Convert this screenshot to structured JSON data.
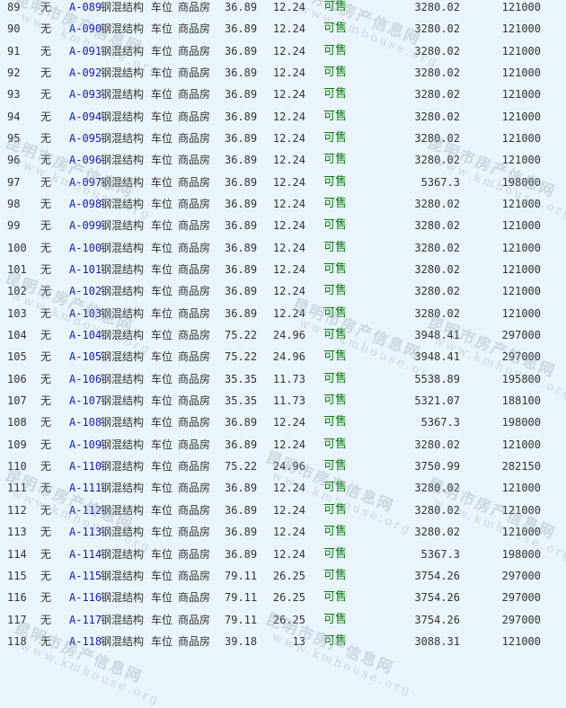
{
  "watermark": {
    "title": "昆明市房产信息网",
    "url": "www.kmhouse.org"
  },
  "colors": {
    "background": "#e9f5fb",
    "link": "#1a1ab0",
    "status_available": "#0a7a0a"
  },
  "rows": [
    [
      "89",
      "无",
      "A-089",
      "钢混结构",
      "车位",
      "商品房",
      "36.89",
      "12.24",
      "可售",
      "3280.02",
      "121000"
    ],
    [
      "90",
      "无",
      "A-090",
      "钢混结构",
      "车位",
      "商品房",
      "36.89",
      "12.24",
      "可售",
      "3280.02",
      "121000"
    ],
    [
      "91",
      "无",
      "A-091",
      "钢混结构",
      "车位",
      "商品房",
      "36.89",
      "12.24",
      "可售",
      "3280.02",
      "121000"
    ],
    [
      "92",
      "无",
      "A-092",
      "钢混结构",
      "车位",
      "商品房",
      "36.89",
      "12.24",
      "可售",
      "3280.02",
      "121000"
    ],
    [
      "93",
      "无",
      "A-093",
      "钢混结构",
      "车位",
      "商品房",
      "36.89",
      "12.24",
      "可售",
      "3280.02",
      "121000"
    ],
    [
      "94",
      "无",
      "A-094",
      "钢混结构",
      "车位",
      "商品房",
      "36.89",
      "12.24",
      "可售",
      "3280.02",
      "121000"
    ],
    [
      "95",
      "无",
      "A-095",
      "钢混结构",
      "车位",
      "商品房",
      "36.89",
      "12.24",
      "可售",
      "3280.02",
      "121000"
    ],
    [
      "96",
      "无",
      "A-096",
      "钢混结构",
      "车位",
      "商品房",
      "36.89",
      "12.24",
      "可售",
      "3280.02",
      "121000"
    ],
    [
      "97",
      "无",
      "A-097",
      "钢混结构",
      "车位",
      "商品房",
      "36.89",
      "12.24",
      "可售",
      "5367.3",
      "198000"
    ],
    [
      "98",
      "无",
      "A-098",
      "钢混结构",
      "车位",
      "商品房",
      "36.89",
      "12.24",
      "可售",
      "3280.02",
      "121000"
    ],
    [
      "99",
      "无",
      "A-099",
      "钢混结构",
      "车位",
      "商品房",
      "36.89",
      "12.24",
      "可售",
      "3280.02",
      "121000"
    ],
    [
      "100",
      "无",
      "A-100",
      "钢混结构",
      "车位",
      "商品房",
      "36.89",
      "12.24",
      "可售",
      "3280.02",
      "121000"
    ],
    [
      "101",
      "无",
      "A-101",
      "钢混结构",
      "车位",
      "商品房",
      "36.89",
      "12.24",
      "可售",
      "3280.02",
      "121000"
    ],
    [
      "102",
      "无",
      "A-102",
      "钢混结构",
      "车位",
      "商品房",
      "36.89",
      "12.24",
      "可售",
      "3280.02",
      "121000"
    ],
    [
      "103",
      "无",
      "A-103",
      "钢混结构",
      "车位",
      "商品房",
      "36.89",
      "12.24",
      "可售",
      "3280.02",
      "121000"
    ],
    [
      "104",
      "无",
      "A-104",
      "钢混结构",
      "车位",
      "商品房",
      "75.22",
      "24.96",
      "可售",
      "3948.41",
      "297000"
    ],
    [
      "105",
      "无",
      "A-105",
      "钢混结构",
      "车位",
      "商品房",
      "75.22",
      "24.96",
      "可售",
      "3948.41",
      "297000"
    ],
    [
      "106",
      "无",
      "A-106",
      "钢混结构",
      "车位",
      "商品房",
      "35.35",
      "11.73",
      "可售",
      "5538.89",
      "195800"
    ],
    [
      "107",
      "无",
      "A-107",
      "钢混结构",
      "车位",
      "商品房",
      "35.35",
      "11.73",
      "可售",
      "5321.07",
      "188100"
    ],
    [
      "108",
      "无",
      "A-108",
      "钢混结构",
      "车位",
      "商品房",
      "36.89",
      "12.24",
      "可售",
      "5367.3",
      "198000"
    ],
    [
      "109",
      "无",
      "A-109",
      "钢混结构",
      "车位",
      "商品房",
      "36.89",
      "12.24",
      "可售",
      "3280.02",
      "121000"
    ],
    [
      "110",
      "无",
      "A-110",
      "钢混结构",
      "车位",
      "商品房",
      "75.22",
      "24.96",
      "可售",
      "3750.99",
      "282150"
    ],
    [
      "111",
      "无",
      "A-111",
      "钢混结构",
      "车位",
      "商品房",
      "36.89",
      "12.24",
      "可售",
      "3280.02",
      "121000"
    ],
    [
      "112",
      "无",
      "A-112",
      "钢混结构",
      "车位",
      "商品房",
      "36.89",
      "12.24",
      "可售",
      "3280.02",
      "121000"
    ],
    [
      "113",
      "无",
      "A-113",
      "钢混结构",
      "车位",
      "商品房",
      "36.89",
      "12.24",
      "可售",
      "3280.02",
      "121000"
    ],
    [
      "114",
      "无",
      "A-114",
      "钢混结构",
      "车位",
      "商品房",
      "36.89",
      "12.24",
      "可售",
      "5367.3",
      "198000"
    ],
    [
      "115",
      "无",
      "A-115",
      "钢混结构",
      "车位",
      "商品房",
      "79.11",
      "26.25",
      "可售",
      "3754.26",
      "297000"
    ],
    [
      "116",
      "无",
      "A-116",
      "钢混结构",
      "车位",
      "商品房",
      "79.11",
      "26.25",
      "可售",
      "3754.26",
      "297000"
    ],
    [
      "117",
      "无",
      "A-117",
      "钢混结构",
      "车位",
      "商品房",
      "79.11",
      "26.25",
      "可售",
      "3754.26",
      "297000"
    ],
    [
      "118",
      "无",
      "A-118",
      "钢混结构",
      "车位",
      "商品房",
      "39.18",
      "13",
      "可售",
      "3088.31",
      "121000"
    ]
  ]
}
